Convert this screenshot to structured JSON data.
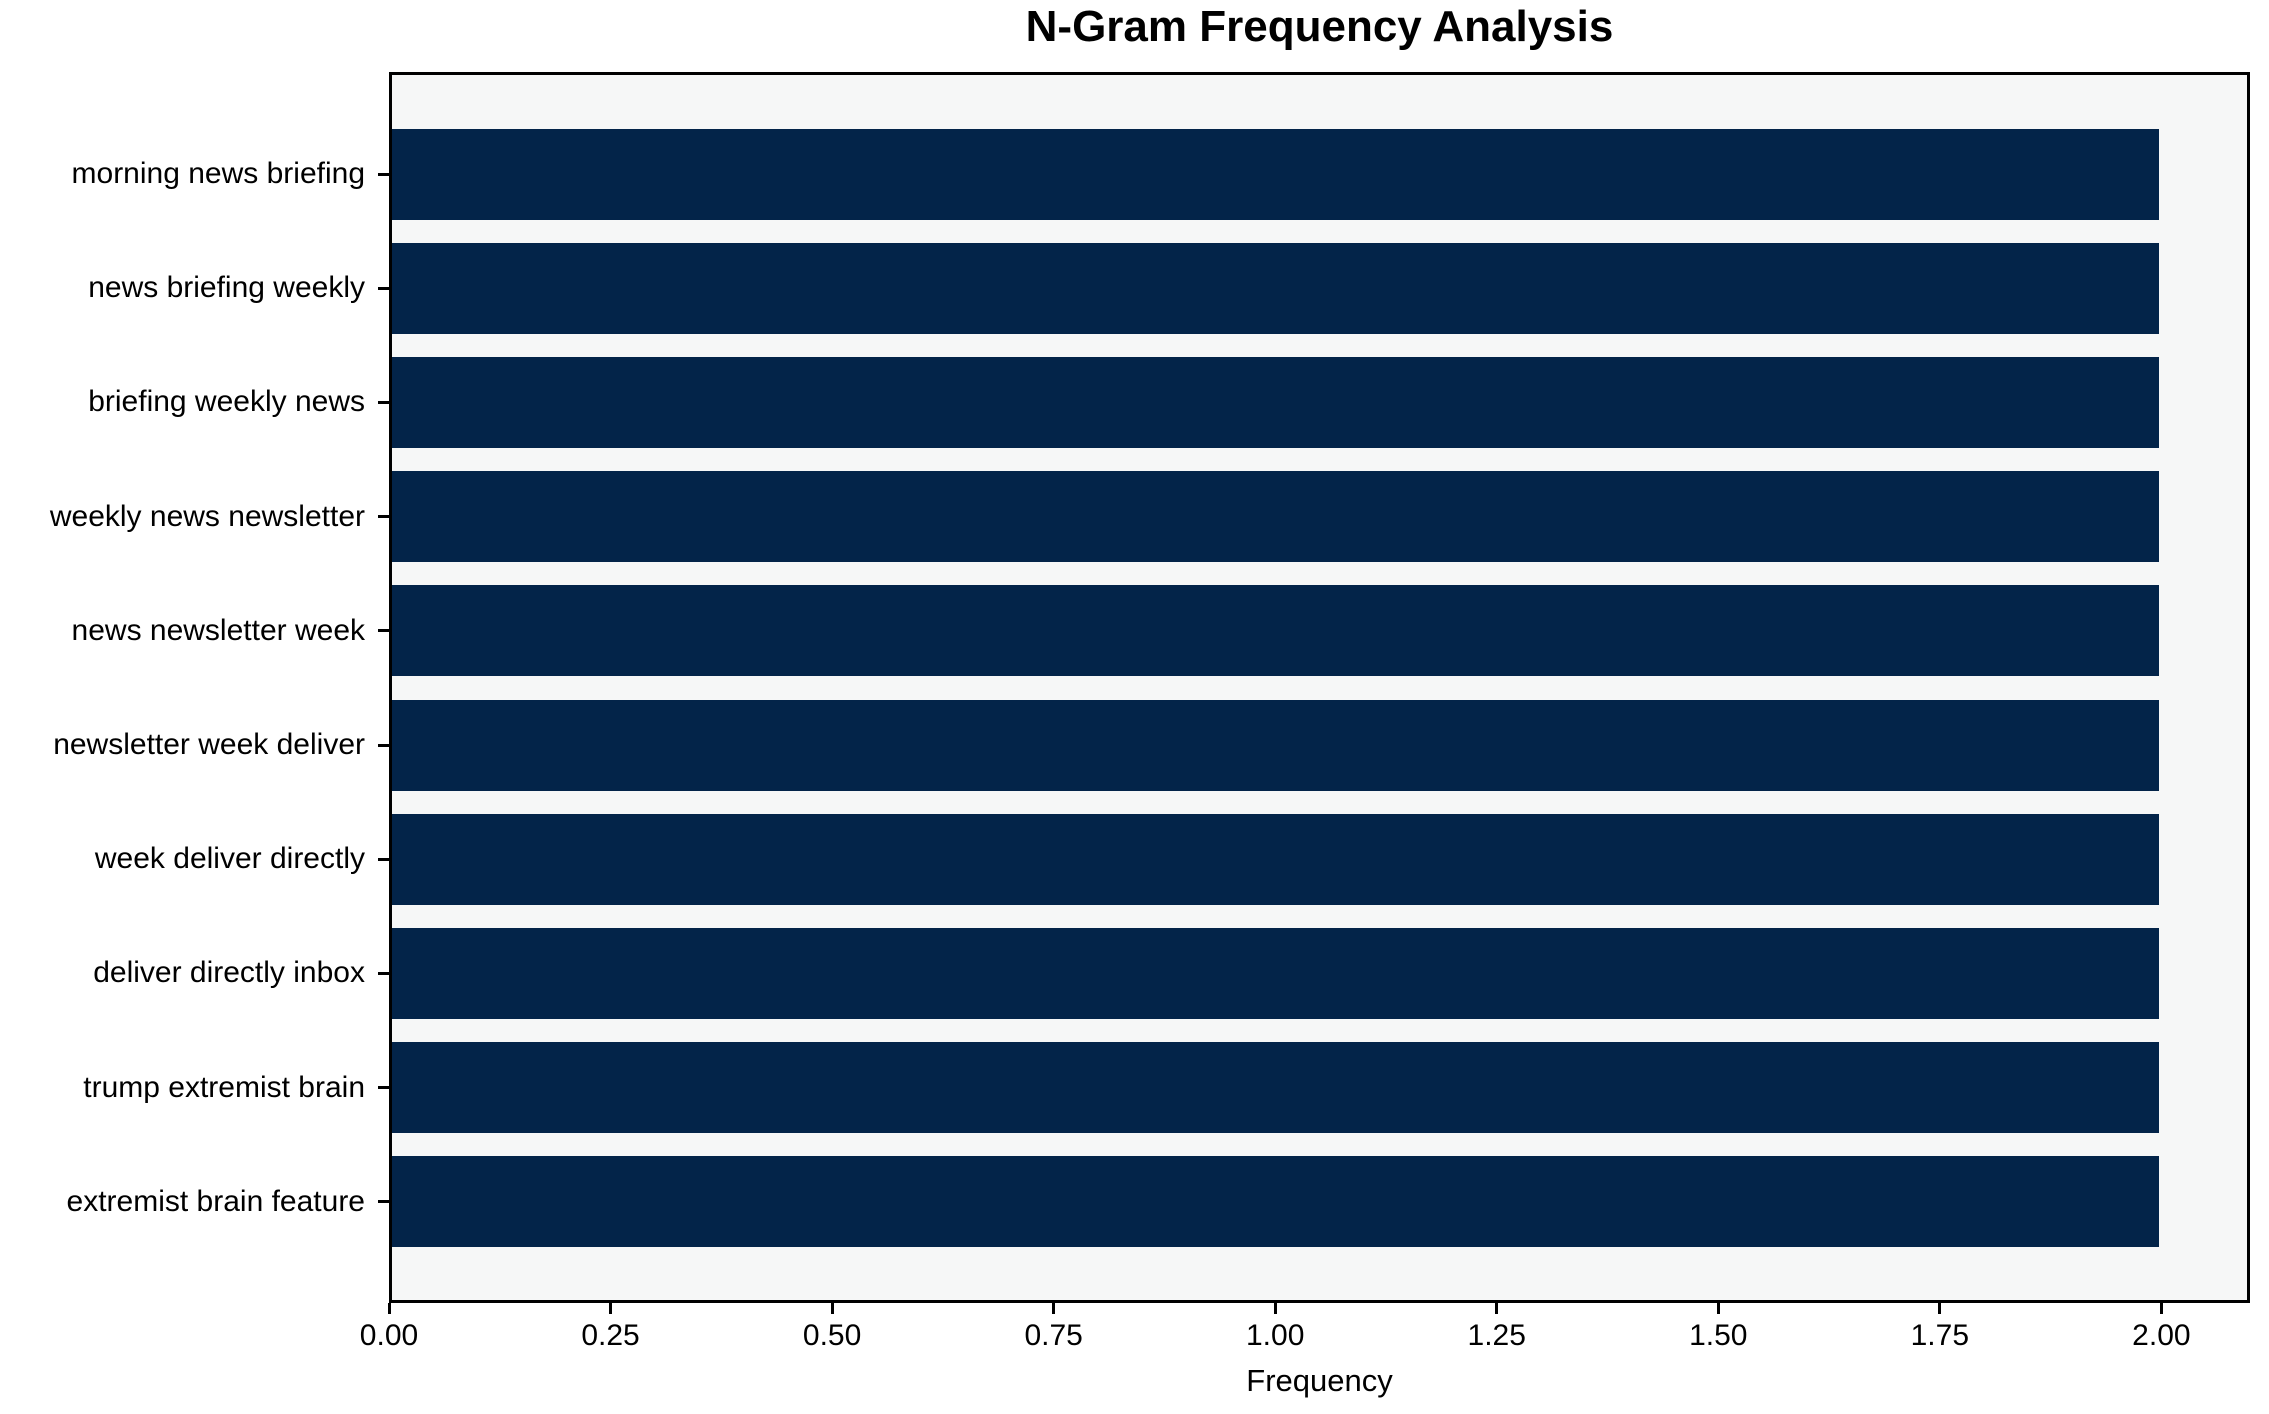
{
  "chart_data": {
    "type": "bar",
    "orientation": "horizontal",
    "title": "N-Gram Frequency Analysis",
    "xlabel": "Frequency",
    "ylabel": "",
    "categories": [
      "morning news briefing",
      "news briefing weekly",
      "briefing weekly news",
      "weekly news newsletter",
      "news newsletter week",
      "newsletter week deliver",
      "week deliver directly",
      "deliver directly inbox",
      "trump extremist brain",
      "extremist brain feature"
    ],
    "values": [
      2,
      2,
      2,
      2,
      2,
      2,
      2,
      2,
      2,
      2
    ],
    "xlim": [
      0,
      2.1
    ],
    "xticks": [
      0.0,
      0.25,
      0.5,
      0.75,
      1.0,
      1.25,
      1.5,
      1.75,
      2.0
    ],
    "xtick_labels": [
      "0.00",
      "0.25",
      "0.50",
      "0.75",
      "1.00",
      "1.25",
      "1.50",
      "1.75",
      "2.00"
    ],
    "grid": false,
    "legend": null,
    "colors": {
      "bar": "#032449",
      "plot_background": "#f6f7f7",
      "figure_background": "#ffffff",
      "axis": "#000000",
      "text": "#000000"
    }
  }
}
